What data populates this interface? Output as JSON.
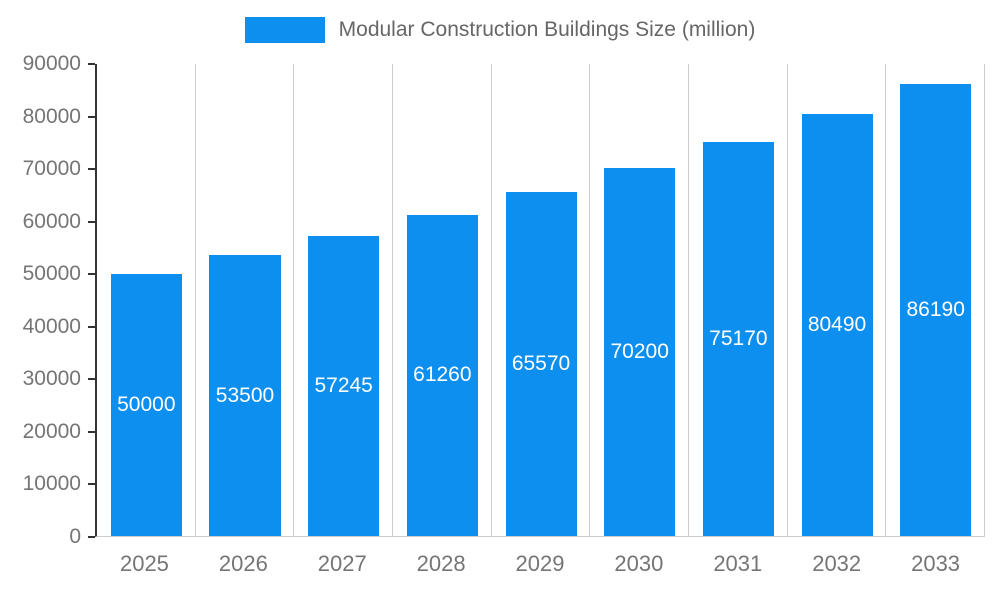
{
  "chart": {
    "title": "Modular Construction Buildings Size (million)"
  },
  "chart_data": {
    "type": "bar",
    "title": "Modular Construction Buildings Size (million)",
    "legend_entries": [
      "Modular Construction Buildings Size (million)"
    ],
    "legend_position": "top",
    "categories": [
      "2025",
      "2026",
      "2027",
      "2028",
      "2029",
      "2030",
      "2031",
      "2032",
      "2033"
    ],
    "values": [
      50000,
      53500,
      57245,
      61260,
      65570,
      70200,
      75170,
      80490,
      86190
    ],
    "xlabel": "",
    "ylabel": "",
    "ylim": [
      0,
      90000
    ],
    "ytick_step": 10000,
    "ytick_labels": [
      "0",
      "10000",
      "20000",
      "30000",
      "40000",
      "50000",
      "60000",
      "70000",
      "80000",
      "90000"
    ],
    "grid": "vertical category boundaries",
    "bar_color": "#0D8FF0",
    "value_label_color": "#FFFFFF",
    "axis_text_color": "#757575",
    "gridline_color": "#CCCCCC",
    "axis_line_color": "#333333"
  }
}
